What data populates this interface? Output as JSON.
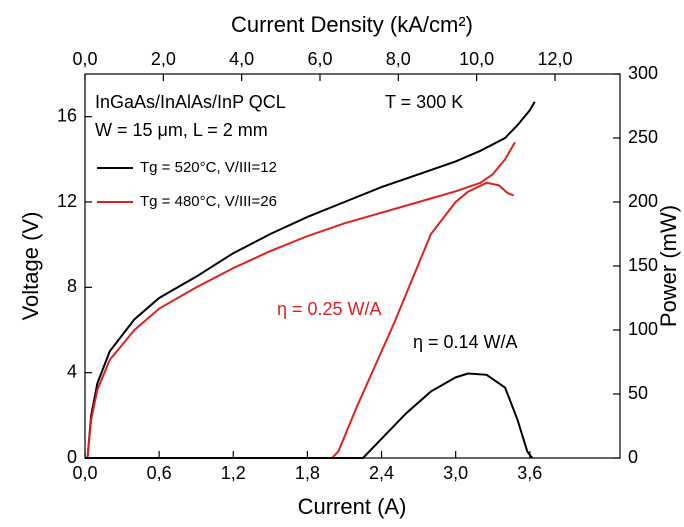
{
  "chart_data": {
    "type": "line",
    "xlabel": "Current (A)",
    "ylabel": "Voltage (V)",
    "y2label": "Power (mW)",
    "x2label": "Current Density (kA/cm²)",
    "xlim": [
      0,
      4.33
    ],
    "xticks": [
      {
        "value": 0,
        "label": "0,0"
      },
      {
        "value": 0.6,
        "label": "0,6"
      },
      {
        "value": 1.2,
        "label": "1,2"
      },
      {
        "value": 1.8,
        "label": "1,8"
      },
      {
        "value": 2.4,
        "label": "2,4"
      },
      {
        "value": 3.0,
        "label": "3,0"
      },
      {
        "value": 3.6,
        "label": "3,6"
      }
    ],
    "x2lim": [
      0,
      13.66
    ],
    "x2ticks": [
      {
        "value": 0,
        "label": "0,0"
      },
      {
        "value": 2,
        "label": "2,0"
      },
      {
        "value": 4,
        "label": "4,0"
      },
      {
        "value": 6,
        "label": "6,0"
      },
      {
        "value": 8,
        "label": "8,0"
      },
      {
        "value": 10,
        "label": "10,0"
      },
      {
        "value": 12,
        "label": "12,0"
      }
    ],
    "ylim": [
      0,
      18
    ],
    "yticks": [
      0,
      4,
      8,
      12,
      16
    ],
    "y2lim": [
      0,
      300
    ],
    "y2ticks": [
      0,
      50,
      100,
      150,
      200,
      250,
      300
    ],
    "annotations": [
      "InGaAs/InAlAs/InP QCL",
      "T = 300 K",
      "W = 15 μm, L = 2 mm",
      "η = 0.25 W/A",
      "η = 0.14 W/A"
    ],
    "series": [
      {
        "name": "Tg = 520°C, V/III=12",
        "color": "#000000",
        "x": [
          0.02,
          0.05,
          0.1,
          0.2,
          0.4,
          0.6,
          0.9,
          1.2,
          1.5,
          1.8,
          2.1,
          2.4,
          2.7,
          3.0,
          3.2,
          3.4,
          3.5,
          3.6,
          3.64
        ],
        "values": [
          0,
          2,
          3.5,
          5,
          6.5,
          7.5,
          8.5,
          9.6,
          10.5,
          11.3,
          12,
          12.7,
          13.3,
          13.9,
          14.4,
          15.0,
          15.6,
          16.3,
          16.7
        ]
      },
      {
        "name": "Tg = 480°C, V/III=26",
        "color": "#e02020",
        "x": [
          0.02,
          0.05,
          0.1,
          0.2,
          0.4,
          0.6,
          0.9,
          1.2,
          1.5,
          1.8,
          2.1,
          2.4,
          2.7,
          3.0,
          3.2,
          3.3,
          3.4,
          3.48
        ],
        "values": [
          0,
          1.8,
          3.2,
          4.6,
          6,
          7,
          8,
          8.9,
          9.7,
          10.4,
          11,
          11.5,
          12,
          12.5,
          12.9,
          13.3,
          14,
          14.8
        ]
      },
      {
        "color": "#e02020",
        "axis": "y2",
        "x": [
          0,
          2.0,
          2.05,
          2.2,
          2.5,
          2.8,
          3.0,
          3.1,
          3.25,
          3.35,
          3.42,
          3.47
        ],
        "values": [
          0,
          0,
          5,
          40,
          105,
          175,
          200,
          208,
          215,
          213,
          207,
          205
        ]
      },
      {
        "color": "#000000",
        "axis": "y2",
        "x": [
          0,
          2.25,
          2.4,
          2.6,
          2.8,
          3.0,
          3.1,
          3.25,
          3.4,
          3.5,
          3.58,
          3.62
        ],
        "values": [
          0,
          0,
          15,
          35,
          52,
          63,
          66,
          65,
          55,
          30,
          5,
          0
        ]
      }
    ]
  }
}
